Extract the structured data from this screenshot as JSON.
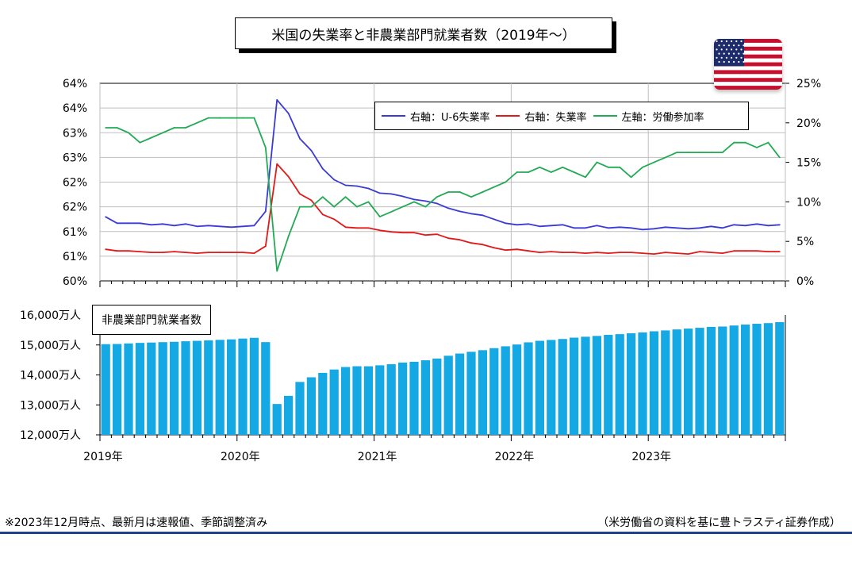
{
  "title": "米国の失業率と非農業部門就業者数（2019年～）",
  "flag": {
    "name": "us-flag",
    "colors": {
      "red": "#c8102e",
      "blue": "#1f2c6b",
      "white": "#ffffff"
    }
  },
  "legend": [
    {
      "label": "右軸：U-6失業率",
      "color": "#3a3ad6"
    },
    {
      "label": "右軸：失業率",
      "color": "#e11919"
    },
    {
      "label": "左軸：労働参加率",
      "color": "#22aa55"
    }
  ],
  "bar_label": "非農業部門就業者数",
  "footnote_left": "※2023年12月時点、最新月は速報値、季節調整済み",
  "footnote_right": "（米労働省の資料を基に豊トラスティ証券作成）",
  "chart_data": [
    {
      "type": "line",
      "x_start": "2019-01",
      "x_end": "2023-12",
      "x_tick_labels": [
        "2019年",
        "2020年",
        "2021年",
        "2022年",
        "2023年"
      ],
      "left_axis_tick_labels": [
        "60%",
        "61%",
        "61%",
        "62%",
        "62%",
        "63%",
        "63%",
        "64%",
        "64%"
      ],
      "left_ylim": [
        60,
        64
      ],
      "right_axis_tick_labels": [
        "0%",
        "5%",
        "10%",
        "15%",
        "20%",
        "25%"
      ],
      "right_ylim": [
        0,
        25
      ],
      "grid": "horizontal",
      "legend_placement": "top-right",
      "series": [
        {
          "name": "右軸：U-6失業率",
          "axis": "right",
          "color": "#3a3ad6",
          "values": [
            8.1,
            7.3,
            7.3,
            7.3,
            7.1,
            7.2,
            7.0,
            7.2,
            6.9,
            7.0,
            6.9,
            6.8,
            6.9,
            7.0,
            8.8,
            22.9,
            21.2,
            18.0,
            16.5,
            14.2,
            12.8,
            12.1,
            12.0,
            11.7,
            11.1,
            11.0,
            10.7,
            10.3,
            10.1,
            9.8,
            9.2,
            8.8,
            8.5,
            8.3,
            7.8,
            7.3,
            7.1,
            7.2,
            6.9,
            7.0,
            7.1,
            6.7,
            6.7,
            7.0,
            6.7,
            6.8,
            6.7,
            6.5,
            6.6,
            6.8,
            6.7,
            6.6,
            6.7,
            6.9,
            6.7,
            7.1,
            7.0,
            7.2,
            7.0,
            7.1
          ]
        },
        {
          "name": "右軸：失業率",
          "axis": "right",
          "color": "#e11919",
          "values": [
            4.0,
            3.8,
            3.8,
            3.7,
            3.6,
            3.6,
            3.7,
            3.6,
            3.5,
            3.6,
            3.6,
            3.6,
            3.6,
            3.5,
            4.4,
            14.8,
            13.2,
            11.0,
            10.2,
            8.4,
            7.8,
            6.8,
            6.7,
            6.7,
            6.4,
            6.2,
            6.1,
            6.1,
            5.8,
            5.9,
            5.4,
            5.2,
            4.8,
            4.6,
            4.2,
            3.9,
            4.0,
            3.8,
            3.6,
            3.7,
            3.6,
            3.6,
            3.5,
            3.6,
            3.5,
            3.6,
            3.6,
            3.5,
            3.4,
            3.6,
            3.5,
            3.4,
            3.7,
            3.6,
            3.5,
            3.8,
            3.8,
            3.8,
            3.7,
            3.7
          ]
        },
        {
          "name": "左軸：労働参加率",
          "axis": "left",
          "color": "#22aa55",
          "values": [
            63.1,
            63.1,
            63.0,
            62.8,
            62.9,
            63.0,
            63.1,
            63.1,
            63.2,
            63.3,
            63.3,
            63.3,
            63.3,
            63.3,
            62.7,
            60.2,
            60.9,
            61.5,
            61.5,
            61.7,
            61.5,
            61.7,
            61.5,
            61.6,
            61.3,
            61.4,
            61.5,
            61.6,
            61.5,
            61.7,
            61.8,
            61.8,
            61.7,
            61.8,
            61.9,
            62.0,
            62.2,
            62.2,
            62.3,
            62.2,
            62.3,
            62.2,
            62.1,
            62.4,
            62.3,
            62.3,
            62.1,
            62.3,
            62.4,
            62.5,
            62.6,
            62.6,
            62.6,
            62.6,
            62.6,
            62.8,
            62.8,
            62.7,
            62.8,
            62.5
          ]
        }
      ]
    },
    {
      "type": "bar",
      "x_start": "2019-01",
      "x_end": "2023-12",
      "x_tick_labels": [
        "2019年",
        "2020年",
        "2021年",
        "2022年",
        "2023年"
      ],
      "y_tick_labels": [
        "12,000万人",
        "13,000万人",
        "14,000万人",
        "15,000万人",
        "16,000万人"
      ],
      "ylim": [
        12000,
        16000
      ],
      "unit": "万人",
      "color": "#14a9e4",
      "values": [
        15027,
        15033,
        15051,
        15069,
        15081,
        15094,
        15106,
        15124,
        15138,
        15155,
        15171,
        15187,
        15214,
        15239,
        15095,
        13029,
        13301,
        13766,
        13921,
        14068,
        14181,
        14264,
        14290,
        14289,
        14321,
        14357,
        14413,
        14440,
        14489,
        14548,
        14640,
        14714,
        14772,
        14826,
        14893,
        14956,
        15016,
        15088,
        15139,
        15168,
        15200,
        15245,
        15275,
        15302,
        15337,
        15361,
        15390,
        15418,
        15457,
        15486,
        15519,
        15547,
        15574,
        15604,
        15616,
        15650,
        15681,
        15708,
        15730,
        15762
      ],
      "label": "非農業部門就業者数"
    }
  ]
}
